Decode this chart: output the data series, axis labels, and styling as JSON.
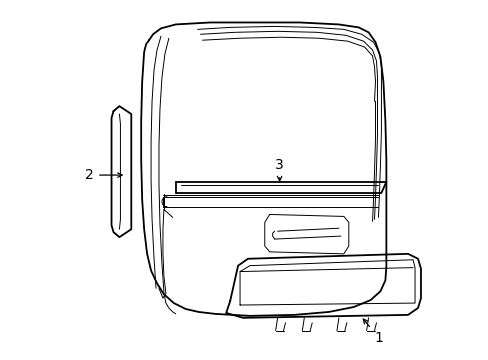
{
  "background_color": "#ffffff",
  "line_color": "#000000",
  "lw_main": 1.3,
  "lw_thin": 0.7,
  "fig_width": 4.89,
  "fig_height": 3.6,
  "dpi": 100
}
